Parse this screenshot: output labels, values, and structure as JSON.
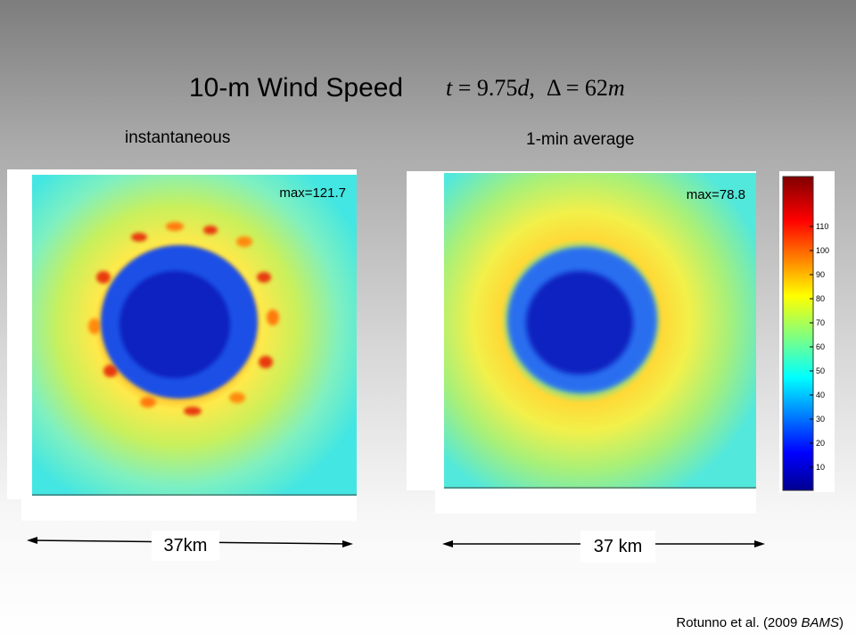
{
  "title": "10-m Wind Speed",
  "formula": {
    "t_label": "t",
    "t_value": "9.75",
    "t_unit": "d",
    "sep": ",",
    "delta_symbol": "Δ",
    "delta_value": "62",
    "delta_unit": "m"
  },
  "panels": [
    {
      "subtitle": "instantaneous",
      "max_label": "max=121.7",
      "scale_label": "37km"
    },
    {
      "subtitle": "1-min average",
      "max_label": "max=78.8",
      "scale_label": "37 km"
    }
  ],
  "colorbar": {
    "ticks": [
      "10",
      "20",
      "30",
      "40",
      "50",
      "60",
      "70",
      "80",
      "90",
      "100",
      "110"
    ]
  },
  "credit": {
    "prefix": "Rotunno et al. (2009 ",
    "journal": "BAMS",
    "suffix": ")"
  },
  "colors": {
    "core": "#0a1fb8",
    "eyewall": "#ff9a10",
    "ambient": "#7ff0c0"
  }
}
